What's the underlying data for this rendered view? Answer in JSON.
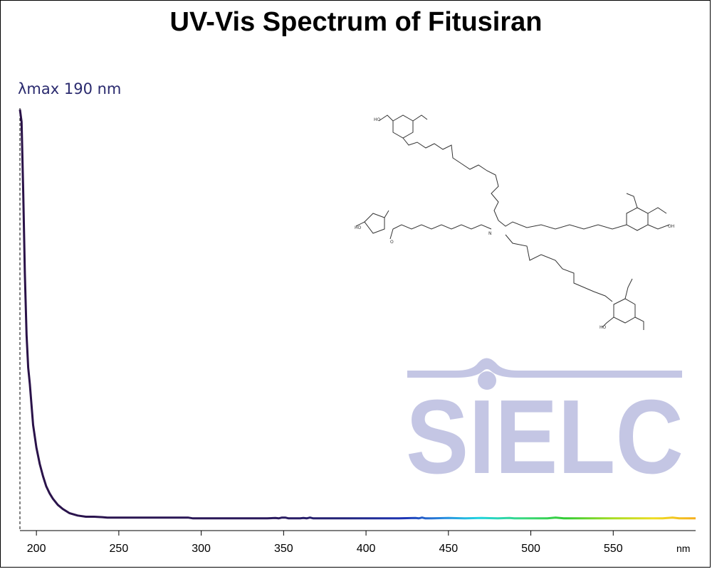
{
  "title": "UV-Vis Spectrum of Fitusiran",
  "lambda_max_label": "λmax  190 nm",
  "watermark": "SIELC",
  "colors": {
    "curve_uv": "#2a1248",
    "watermark": "#c4c6e4",
    "label": "#2a2a6e"
  },
  "chart_data": {
    "type": "line",
    "title": "UV-Vis Spectrum of Fitusiran",
    "xlabel": "nm",
    "ylabel": "",
    "xlim": [
      190,
      600
    ],
    "ylim": [
      0,
      1
    ],
    "x_ticks": [
      200,
      250,
      300,
      350,
      400,
      450,
      500,
      550
    ],
    "grid": false,
    "lambda_max": 190,
    "series": [
      {
        "x": [
          190,
          191,
          192,
          193,
          194,
          195,
          196,
          197,
          198,
          200,
          202,
          204,
          206,
          208,
          210,
          213,
          216,
          220,
          225,
          230,
          235,
          240,
          243,
          250,
          260,
          280,
          292,
          295,
          300,
          320,
          340,
          345,
          347,
          349,
          351,
          353,
          360,
          362,
          364,
          366,
          368,
          380,
          400,
          420,
          430,
          432,
          434,
          436,
          440,
          450,
          460,
          470,
          480,
          487,
          490,
          500,
          510,
          515,
          520,
          530,
          540,
          550,
          560,
          570,
          580,
          586,
          590,
          600
        ],
        "y": [
          1.0,
          0.97,
          0.8,
          0.6,
          0.45,
          0.37,
          0.33,
          0.28,
          0.23,
          0.175,
          0.135,
          0.105,
          0.08,
          0.063,
          0.05,
          0.035,
          0.025,
          0.015,
          0.009,
          0.006,
          0.006,
          0.005,
          0.004,
          0.004,
          0.004,
          0.004,
          0.004,
          0.002,
          0.002,
          0.002,
          0.002,
          0.003,
          0.002,
          0.004,
          0.004,
          0.002,
          0.002,
          0.003,
          0.002,
          0.004,
          0.002,
          0.002,
          0.002,
          0.002,
          0.003,
          0.002,
          0.004,
          0.002,
          0.002,
          0.003,
          0.002,
          0.003,
          0.002,
          0.003,
          0.002,
          0.002,
          0.002,
          0.004,
          0.002,
          0.002,
          0.002,
          0.002,
          0.002,
          0.002,
          0.002,
          0.004,
          0.002,
          0.002
        ]
      }
    ]
  }
}
